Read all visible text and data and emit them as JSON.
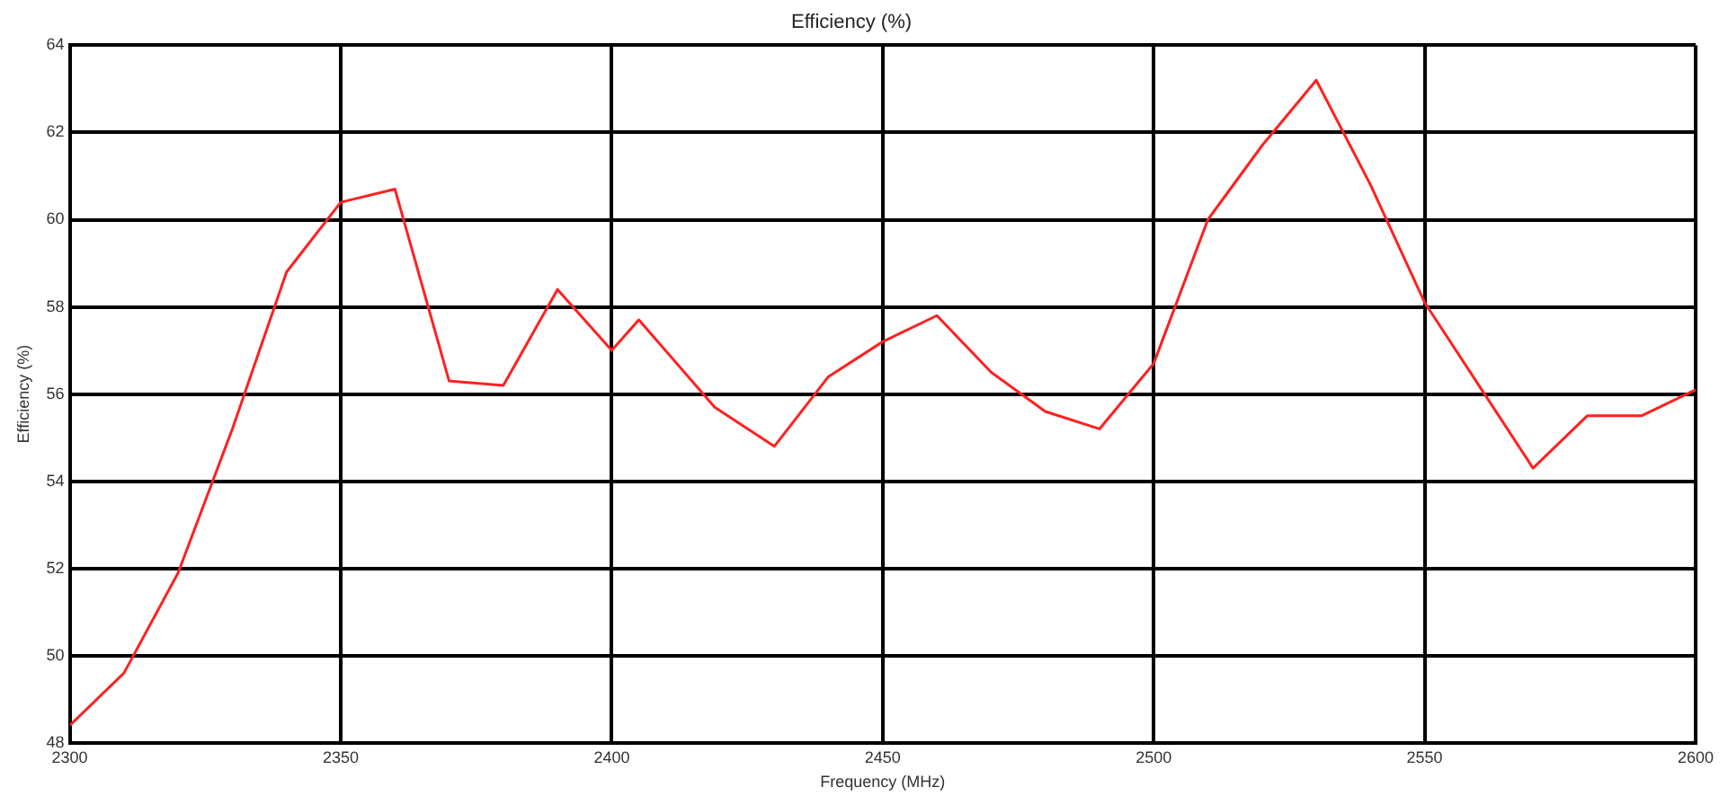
{
  "chart_data": {
    "type": "line",
    "title": "Efficiency (%)",
    "xlabel": "Frequency (MHz)",
    "ylabel": "Efficiency (%)",
    "x": [
      2300,
      2310,
      2320,
      2330,
      2340,
      2350,
      2360,
      2370,
      2380,
      2390,
      2400,
      2405,
      2419,
      2430,
      2440,
      2450,
      2460,
      2470,
      2480,
      2490,
      2500,
      2510,
      2520,
      2530,
      2540,
      2550,
      2560,
      2570,
      2580,
      2590,
      2600
    ],
    "series": [
      {
        "color": "#ff2020",
        "values": [
          48.4,
          49.6,
          51.9,
          55.2,
          58.8,
          60.4,
          60.7,
          56.3,
          56.2,
          58.4,
          57.0,
          57.7,
          55.7,
          54.8,
          56.4,
          57.2,
          57.8,
          56.5,
          55.6,
          55.2,
          56.7,
          60.0,
          61.7,
          63.2,
          60.8,
          58.1,
          56.2,
          54.3,
          55.5,
          55.5,
          56.1
        ]
      }
    ],
    "xlim": [
      2300,
      2600
    ],
    "xticks": [
      2300,
      2350,
      2400,
      2450,
      2500,
      2550,
      2600
    ],
    "ylim": [
      48,
      64
    ],
    "yticks": [
      48,
      50,
      52,
      54,
      56,
      58,
      60,
      62,
      64
    ],
    "grid": true,
    "legend": false,
    "marker": "none",
    "line_style": "solid"
  }
}
